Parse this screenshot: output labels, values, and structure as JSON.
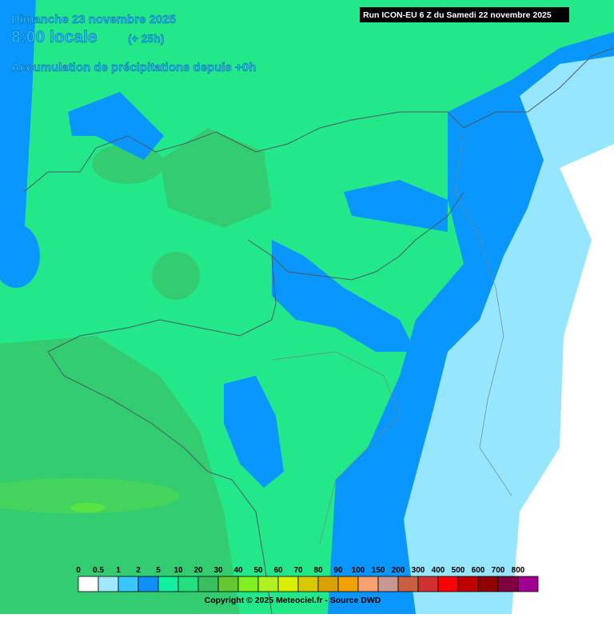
{
  "header": {
    "date": "Dimanche 23 novembre 2025",
    "time": "8:00 locale",
    "offset": "(+ 25h)",
    "subtitle": "Accumulation de précipitations depuis +0h",
    "run": "Run ICON-EU 6 Z du Samedi 22 novembre 2025"
  },
  "legend": {
    "values": [
      0,
      0.5,
      1,
      2,
      5,
      10,
      20,
      30,
      40,
      50,
      60,
      70,
      80,
      90,
      100,
      150,
      200,
      300,
      400,
      500,
      600,
      700,
      800
    ],
    "colors": [
      "#ffffff",
      "#a0e8ff",
      "#38c8ff",
      "#1090ff",
      "#10f0a0",
      "#22e080",
      "#38c060",
      "#64c830",
      "#80f020",
      "#b0f020",
      "#d8f000",
      "#d8c800",
      "#d8a000",
      "#f0a000",
      "#f8a070",
      "#c89890",
      "#c86040",
      "#d03030",
      "#ff0000",
      "#c00000",
      "#900000",
      "#800040",
      "#a00090"
    ]
  },
  "footer": {
    "copyright": "Copyright © 2025 Meteociel.fr - Source DWD"
  }
}
